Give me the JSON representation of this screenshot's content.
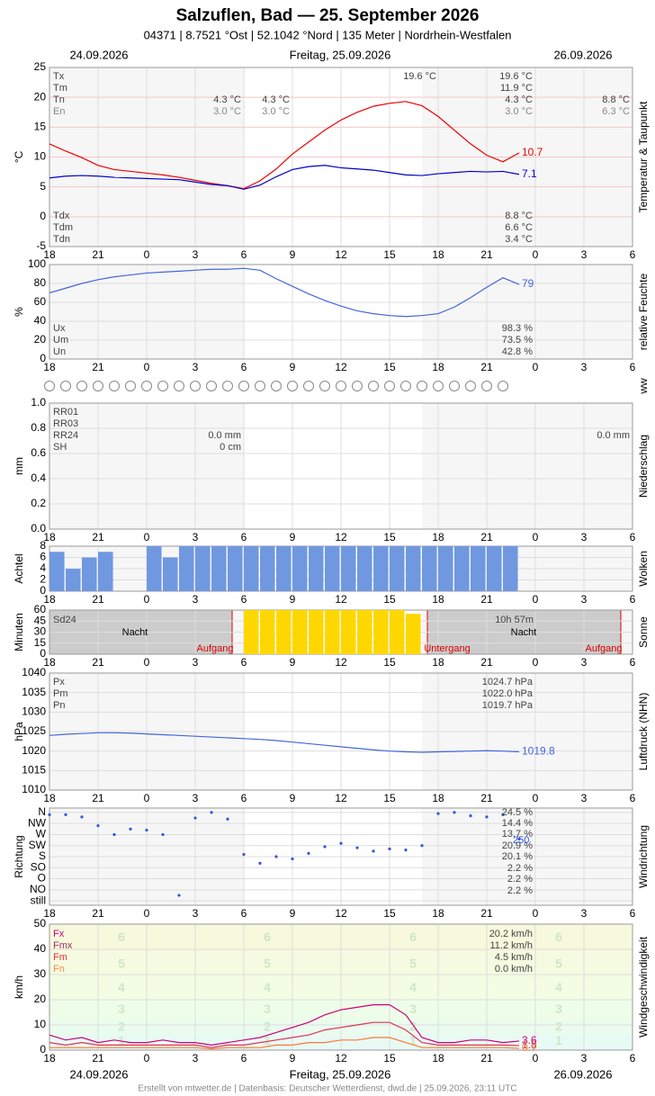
{
  "header": {
    "title": "Salzuflen, Bad  —  25. September 2026",
    "subtitle": "04371  |  8.7521 °Ost  |  52.1042 °Nord  |  135 Meter  |  Nordrhein-Westfalen",
    "date_left": "24.09.2026",
    "date_center": "Freitag, 25.09.2026",
    "date_right": "26.09.2026",
    "ww": "ww",
    "footer": "Erstellt von mtwetter.de | Datenbasis: Deutscher Wetterdienst, dwd.de | 25.09.2026, 23:11 UTC"
  },
  "xaxis": {
    "xlim": [
      0,
      36
    ],
    "xticks": [
      {
        "value": 0,
        "label": "18"
      },
      {
        "value": 3,
        "label": "21"
      },
      {
        "value": 6,
        "label": "0"
      },
      {
        "value": 9,
        "label": "3"
      },
      {
        "value": 12,
        "label": "6"
      },
      {
        "value": 15,
        "label": "9"
      },
      {
        "value": 18,
        "label": "12"
      },
      {
        "value": 21,
        "label": "15"
      },
      {
        "value": 24,
        "label": "18"
      },
      {
        "value": 27,
        "label": "21"
      },
      {
        "value": 30,
        "label": "0"
      },
      {
        "value": 33,
        "label": "3"
      },
      {
        "value": 36,
        "label": "6"
      }
    ]
  },
  "chart_data": [
    {
      "type": "line",
      "ylabel": "°C",
      "side_label": "Temperatur & Taupunkt",
      "ylim": [
        -5,
        25
      ],
      "yticks": [
        -5,
        0,
        5,
        10,
        15,
        20,
        25
      ],
      "x": [
        0,
        1,
        2,
        3,
        4,
        5,
        6,
        7,
        8,
        9,
        10,
        11,
        12,
        13,
        14,
        15,
        16,
        17,
        18,
        19,
        20,
        21,
        22,
        23,
        24,
        25,
        26,
        27,
        28,
        29
      ],
      "series": [
        {
          "color": "#ee0000",
          "values": [
            12.2,
            11.0,
            9.9,
            8.6,
            7.9,
            7.6,
            7.3,
            7.0,
            6.6,
            6.1,
            5.6,
            5.2,
            4.7,
            6.0,
            8.0,
            10.5,
            12.5,
            14.5,
            16.2,
            17.5,
            18.5,
            19.0,
            19.3,
            18.6,
            16.8,
            14.5,
            12.2,
            10.3,
            9.2,
            10.7
          ]
        },
        {
          "color": "#0000cc",
          "values": [
            6.5,
            6.8,
            6.9,
            6.8,
            6.6,
            6.5,
            6.4,
            6.3,
            6.2,
            5.8,
            5.4,
            5.2,
            4.6,
            5.3,
            6.7,
            7.9,
            8.4,
            8.6,
            8.2,
            8.0,
            7.8,
            7.4,
            7.0,
            6.9,
            7.2,
            7.4,
            7.6,
            7.5,
            7.6,
            7.1
          ]
        }
      ],
      "notes": [
        "Tx",
        "Tm",
        "Tn",
        "En",
        "4.3 °C",
        "3.0 °C",
        "4.3 °C",
        "3.0 °C",
        "19.6 °C",
        "19.6 °C",
        "11.9 °C",
        "4.3 °C",
        "3.0 °C",
        "8.8 °C",
        "6.3 °C",
        "Tdx",
        "Tdm",
        "Tdn",
        "8.8 °C",
        "6.6 °C",
        "3.4 °C"
      ]
    },
    {
      "type": "line",
      "ylabel": "%",
      "side_label": "relative Feuchte",
      "ylim": [
        0,
        100
      ],
      "yticks": [
        0,
        20,
        40,
        60,
        80,
        100
      ],
      "x": [
        0,
        1,
        2,
        3,
        4,
        5,
        6,
        7,
        8,
        9,
        10,
        11,
        12,
        13,
        14,
        15,
        16,
        17,
        18,
        19,
        20,
        21,
        22,
        23,
        24,
        25,
        26,
        27,
        28,
        29
      ],
      "series": [
        {
          "color": "#4466dd",
          "values": [
            70,
            75,
            80,
            84,
            87,
            89,
            91,
            92,
            93,
            94,
            95,
            95,
            96,
            94,
            85,
            77,
            69,
            62,
            56,
            51,
            48,
            46,
            45,
            46,
            48,
            55,
            65,
            76,
            86,
            79.0
          ]
        }
      ],
      "notes": [
        "Ux",
        "Um",
        "Un",
        "98.3 %",
        "73.5 %",
        "42.8 %"
      ]
    },
    {
      "type": "bar",
      "ylabel": "mm",
      "side_label": "Niederschlag",
      "ylim": [
        0,
        1
      ],
      "yticks": [
        {
          "value": 0,
          "label": "0.0"
        },
        {
          "value": 0.2,
          "label": "0.2"
        },
        {
          "value": 0.4,
          "label": "0.4"
        },
        {
          "value": 0.6,
          "label": "0.6"
        },
        {
          "value": 0.8,
          "label": "0.8"
        },
        {
          "value": 1,
          "label": "1.0"
        }
      ],
      "x": [
        0,
        1,
        2,
        3,
        4,
        5,
        6,
        7,
        8,
        9,
        10,
        11,
        12,
        13,
        14,
        15,
        16,
        17,
        18,
        19,
        20,
        21,
        22,
        23,
        24,
        25,
        26,
        27,
        28
      ],
      "series": [
        {
          "color": "#3366cc",
          "values": [
            0,
            0,
            0,
            0,
            0,
            0,
            0,
            0,
            0,
            0,
            0,
            0,
            0,
            0,
            0,
            0,
            0,
            0,
            0,
            0,
            0,
            0,
            0,
            0,
            0,
            0,
            0,
            0,
            0
          ]
        }
      ],
      "notes": [
        "RR01",
        "RR03",
        "RR24",
        "SH",
        "0.0 mm",
        "0 cm",
        "0.0 mm"
      ]
    },
    {
      "type": "bar",
      "ylabel": "Achtel",
      "side_label": "Wolken",
      "ylim": [
        0,
        8
      ],
      "yticks": [
        0,
        2,
        4,
        6,
        8
      ],
      "x": [
        0,
        1,
        2,
        3,
        4,
        5,
        6,
        7,
        8,
        9,
        10,
        11,
        12,
        13,
        14,
        15,
        16,
        17,
        18,
        19,
        20,
        21,
        22,
        23,
        24,
        25,
        26,
        27,
        28
      ],
      "series": [
        {
          "color": "#7098e0",
          "values": [
            7,
            4,
            6,
            7,
            0,
            0,
            8,
            6,
            8,
            8,
            8,
            8,
            8,
            8,
            8,
            8,
            8,
            8,
            8,
            8,
            8,
            8,
            8,
            8,
            8,
            8,
            8,
            8,
            8
          ]
        }
      ],
      "notes": []
    },
    {
      "type": "bar",
      "ylabel": "Minuten",
      "side_label": "Sonne",
      "ylim": [
        0,
        60
      ],
      "yticks": [
        0,
        15,
        30,
        45,
        60
      ],
      "x": [
        0,
        1,
        2,
        3,
        4,
        5,
        6,
        7,
        8,
        9,
        10,
        11,
        12,
        13,
        14,
        15,
        16,
        17,
        18,
        19,
        20,
        21,
        22,
        23,
        24,
        25,
        26,
        27,
        28
      ],
      "series": [
        {
          "color": "#ffd700",
          "values": [
            0,
            0,
            0,
            0,
            0,
            0,
            0,
            0,
            0,
            0,
            0,
            0,
            60,
            60,
            60,
            60,
            60,
            60,
            60,
            60,
            60,
            60,
            55,
            0,
            0,
            0,
            0,
            0,
            0
          ]
        }
      ],
      "notes": [
        "Sd24",
        "10h 57m",
        "Nacht",
        "Nacht",
        "Aufgang",
        "Untergang",
        "Aufgang"
      ]
    },
    {
      "type": "line",
      "ylabel": "hPa",
      "side_label": "Luftdruck (NHN)",
      "ylim": [
        1010,
        1040
      ],
      "yticks": [
        1010,
        1015,
        1020,
        1025,
        1030,
        1035,
        1040
      ],
      "x": [
        0,
        1,
        2,
        3,
        4,
        5,
        6,
        7,
        8,
        9,
        10,
        11,
        12,
        13,
        14,
        15,
        16,
        17,
        18,
        19,
        20,
        21,
        22,
        23,
        24,
        25,
        26,
        27,
        28,
        29
      ],
      "series": [
        {
          "color": "#4466dd",
          "values": [
            1024.0,
            1024.3,
            1024.5,
            1024.7,
            1024.7,
            1024.6,
            1024.4,
            1024.2,
            1024.0,
            1023.8,
            1023.6,
            1023.4,
            1023.2,
            1023.0,
            1022.7,
            1022.3,
            1021.9,
            1021.5,
            1021.1,
            1020.7,
            1020.3,
            1020.0,
            1019.8,
            1019.7,
            1019.8,
            1019.9,
            1020.0,
            1020.1,
            1020.0,
            1019.8
          ]
        }
      ],
      "notes": [
        "Px",
        "Pm",
        "Pn",
        "1024.7 hPa",
        "1022.0 hPa",
        "1019.7 hPa"
      ]
    },
    {
      "type": "scatter",
      "ylabel": "Richtung",
      "side_label": "Windrichtung",
      "ylim": [
        -0.4,
        8.4
      ],
      "yticks": [
        {
          "value": 0,
          "label": "still"
        },
        {
          "value": 1,
          "label": "NO"
        },
        {
          "value": 2,
          "label": "O"
        },
        {
          "value": 3,
          "label": "SO"
        },
        {
          "value": 4,
          "label": "S"
        },
        {
          "value": 5,
          "label": "SW"
        },
        {
          "value": 6,
          "label": "W"
        },
        {
          "value": 7,
          "label": "NW"
        },
        {
          "value": 8,
          "label": "N"
        }
      ],
      "x": [
        0,
        1,
        2,
        3,
        4,
        5,
        6,
        7,
        8,
        9,
        10,
        11,
        12,
        13,
        14,
        15,
        16,
        17,
        18,
        19,
        20,
        21,
        22,
        23,
        24,
        25,
        26,
        27,
        28,
        29
      ],
      "series": [
        {
          "color": "#3355dd",
          "values": [
            7.8,
            7.8,
            7.6,
            6.8,
            6.0,
            6.5,
            6.4,
            6.0,
            0.5,
            7.5,
            8.0,
            7.4,
            4.2,
            3.4,
            4.0,
            3.8,
            4.3,
            4.9,
            5.2,
            4.8,
            4.5,
            4.7,
            4.6,
            5.0,
            7.9,
            8.0,
            7.7,
            7.6,
            7.8,
            5.6
          ]
        }
      ],
      "notes": [
        "24.5 %",
        "14.4 %",
        "13.7 %",
        "20.9 %",
        "20.1 %",
        "2.2 %",
        "2.2 %",
        "2.2 %",
        "250"
      ]
    },
    {
      "type": "line",
      "ylabel": "km/h",
      "side_label": "Windgeschwindigkeit",
      "ylim": [
        0,
        50
      ],
      "yticks": [
        0,
        10,
        20,
        30,
        40,
        50
      ],
      "beaufort": [
        1,
        2,
        3,
        4,
        5,
        6
      ],
      "x": [
        0,
        1,
        2,
        3,
        4,
        5,
        6,
        7,
        8,
        9,
        10,
        11,
        12,
        13,
        14,
        15,
        16,
        17,
        18,
        19,
        20,
        21,
        22,
        23,
        24,
        25,
        26,
        27,
        28,
        29
      ],
      "series": [
        {
          "color": "#cc0077",
          "values": [
            6,
            4,
            5,
            3,
            4,
            3,
            3,
            4,
            3,
            3,
            2,
            3,
            4,
            5,
            7,
            9,
            11,
            14,
            16,
            17,
            18,
            18,
            14,
            5,
            3,
            3,
            4,
            4,
            3,
            3.6
          ]
        },
        {
          "color": "#dd3355",
          "values": [
            3,
            2,
            3,
            2,
            2,
            2,
            2,
            2,
            2,
            2,
            1,
            2,
            2,
            3,
            4,
            5,
            6,
            8,
            9,
            10,
            11,
            11,
            8,
            3,
            2,
            2,
            2,
            2,
            2,
            1.8
          ]
        },
        {
          "color": "#ff7733",
          "values": [
            1,
            1,
            1,
            1,
            1,
            1,
            1,
            1,
            1,
            1,
            0.5,
            1,
            1,
            1,
            2,
            2,
            3,
            3,
            4,
            4,
            5,
            5,
            3,
            1,
            1,
            1,
            1,
            1,
            1,
            0.7
          ]
        }
      ],
      "notes": [
        "Fx",
        "Fmx",
        "Fm",
        "Fn",
        "20.2 km/h",
        "11.2 km/h",
        "4.5 km/h",
        "0.0 km/h"
      ]
    }
  ]
}
